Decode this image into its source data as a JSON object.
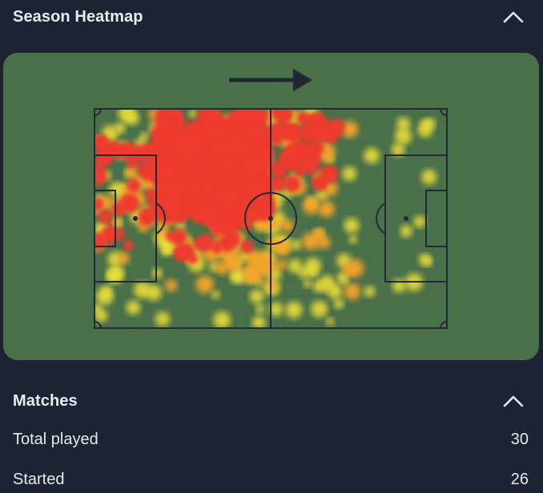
{
  "heatmap_section": {
    "title": "Season Heatmap",
    "collapse_icon": "chevron-up-icon",
    "direction_icon": "arrow-right-icon",
    "colors": {
      "card": "#4a7049",
      "hot": "#ee3b2f",
      "warm": "#f5a42c",
      "mild": "#e9dd3a",
      "lines": "#222a38"
    }
  },
  "matches_section": {
    "title": "Matches",
    "collapse_icon": "chevron-up-icon",
    "stats": [
      {
        "label": "Total played",
        "value": "30"
      },
      {
        "label": "Started",
        "value": "26"
      }
    ]
  },
  "colors": {
    "background": "#1c2433",
    "text": "#e6e9ee"
  }
}
